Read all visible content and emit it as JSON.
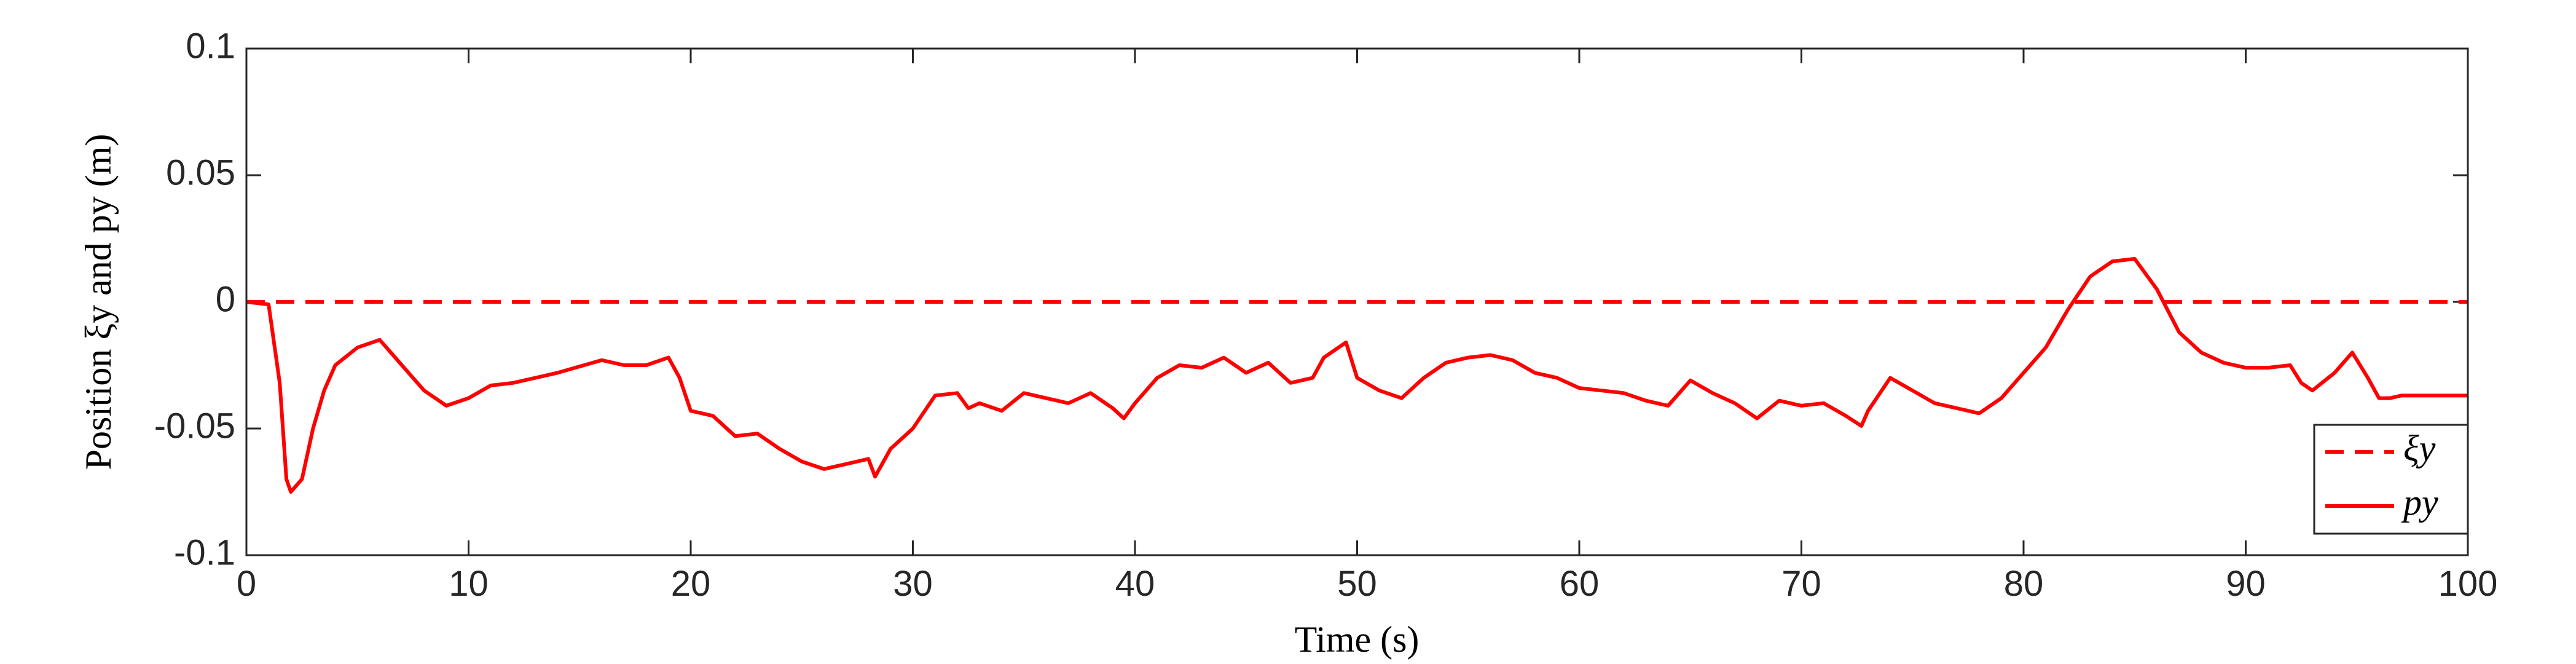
{
  "chart_data": {
    "type": "line",
    "xlabel": "Time (s)",
    "ylabel": "Position ξy and py (m)",
    "xlim": [
      0,
      100
    ],
    "xticks": [
      0,
      10,
      20,
      30,
      40,
      50,
      60,
      70,
      80,
      90,
      100
    ],
    "ylim": [
      -0.1,
      0.1
    ],
    "yticks": [
      -0.1,
      -0.05,
      0,
      0.05,
      0.1
    ],
    "legend": "lower right",
    "series": [
      {
        "name": "ξy",
        "color": "#ff0000",
        "dash": true,
        "x": [
          0,
          100
        ],
        "values": [
          0,
          0
        ]
      },
      {
        "name": "py",
        "color": "#ff0000",
        "dash": false,
        "x": [
          0,
          1,
          1.5,
          1.8,
          2,
          2.5,
          3,
          3.5,
          4,
          5,
          6,
          6.5,
          7,
          7.5,
          8,
          9,
          10,
          11,
          12,
          14,
          16,
          17,
          18,
          19,
          19.5,
          20,
          21,
          22,
          23,
          24,
          25,
          26,
          27,
          28,
          28.3,
          29,
          30,
          31,
          32,
          32.5,
          33,
          34,
          35,
          36,
          37,
          38,
          39,
          39.5,
          40,
          41,
          42,
          43,
          44,
          45,
          46,
          47,
          48,
          48.5,
          49.5,
          50,
          51,
          52,
          53,
          54,
          55,
          56,
          57,
          58,
          59,
          60,
          61,
          62,
          63,
          64,
          65,
          66,
          67,
          68,
          69,
          70,
          71,
          72,
          72.7,
          73,
          74,
          75,
          76,
          77,
          78,
          79,
          80,
          81,
          82,
          83,
          84,
          85,
          86,
          87,
          88,
          89,
          90,
          91,
          92,
          92.5,
          93,
          94,
          94.8,
          95.5,
          96,
          96.5,
          97,
          100
        ],
        "values": [
          0,
          -0.001,
          -0.032,
          -0.07,
          -0.075,
          -0.07,
          -0.05,
          -0.035,
          -0.025,
          -0.018,
          -0.015,
          -0.02,
          -0.025,
          -0.03,
          -0.035,
          -0.041,
          -0.038,
          -0.033,
          -0.032,
          -0.028,
          -0.023,
          -0.025,
          -0.025,
          -0.022,
          -0.03,
          -0.043,
          -0.045,
          -0.053,
          -0.052,
          -0.058,
          -0.063,
          -0.066,
          -0.064,
          -0.062,
          -0.069,
          -0.058,
          -0.05,
          -0.037,
          -0.036,
          -0.042,
          -0.04,
          -0.043,
          -0.036,
          -0.038,
          -0.04,
          -0.036,
          -0.042,
          -0.046,
          -0.04,
          -0.03,
          -0.025,
          -0.026,
          -0.022,
          -0.028,
          -0.024,
          -0.032,
          -0.03,
          -0.022,
          -0.016,
          -0.03,
          -0.035,
          -0.038,
          -0.03,
          -0.024,
          -0.022,
          -0.021,
          -0.023,
          -0.028,
          -0.03,
          -0.034,
          -0.035,
          -0.036,
          -0.039,
          -0.041,
          -0.031,
          -0.036,
          -0.04,
          -0.046,
          -0.039,
          -0.041,
          -0.04,
          -0.045,
          -0.049,
          -0.043,
          -0.03,
          -0.035,
          -0.04,
          -0.042,
          -0.044,
          -0.038,
          -0.028,
          -0.018,
          -0.003,
          0.01,
          0.016,
          0.017,
          0.005,
          -0.012,
          -0.02,
          -0.024,
          -0.026,
          -0.026,
          -0.025,
          -0.032,
          -0.035,
          -0.028,
          -0.02,
          -0.03,
          -0.038,
          -0.038,
          -0.037,
          -0.037
        ]
      }
    ]
  }
}
